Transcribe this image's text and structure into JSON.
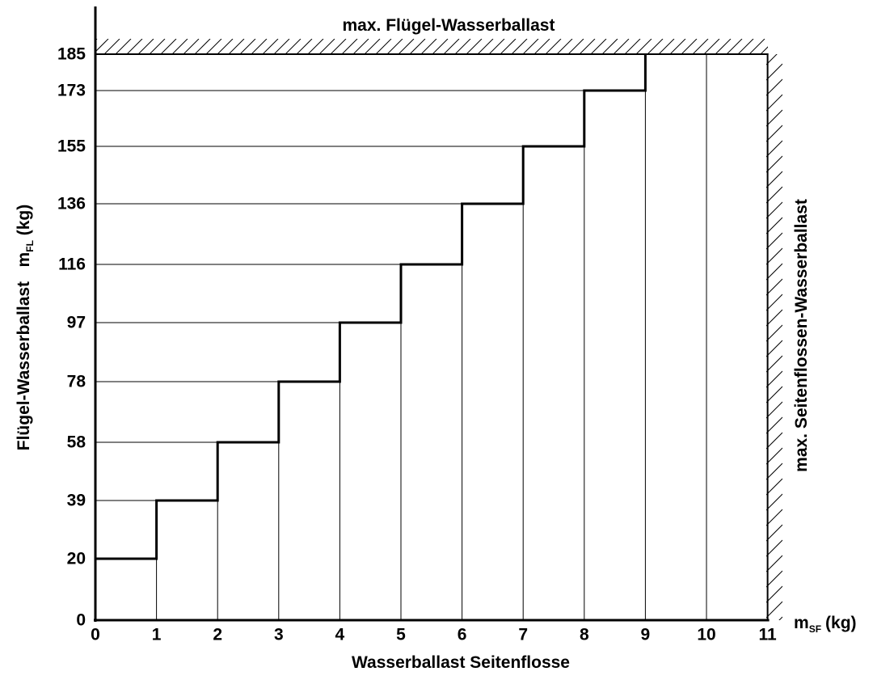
{
  "chart_data": {
    "type": "line",
    "step": true,
    "title": "max. Flügel-Wasserballast",
    "right_label": "max. Seitenflossen-Wasserballast",
    "xlabel": "Wasserballast Seitenflosse",
    "xunit_main": "m",
    "xunit_sub": "SF",
    "xunit_tail": "(kg)",
    "ylabel_main": "Flügel-Wasserballast   m",
    "ylabel_sub": "FL",
    "ylabel_tail": " (kg)",
    "x_ticks": [
      "0",
      "1",
      "2",
      "3",
      "4",
      "5",
      "6",
      "7",
      "8",
      "9",
      "10",
      "11"
    ],
    "y_ticks": [
      "0",
      "20",
      "39",
      "58",
      "78",
      "97",
      "116",
      "136",
      "155",
      "173",
      "185"
    ],
    "xlim": [
      0,
      11
    ],
    "ylim": [
      0,
      185
    ],
    "grid": true,
    "x": [
      0,
      1,
      2,
      3,
      4,
      5,
      6,
      7,
      8,
      9
    ],
    "y": [
      20,
      39,
      58,
      78,
      97,
      116,
      136,
      155,
      173,
      185
    ],
    "max_x": 11,
    "max_y": 185
  }
}
